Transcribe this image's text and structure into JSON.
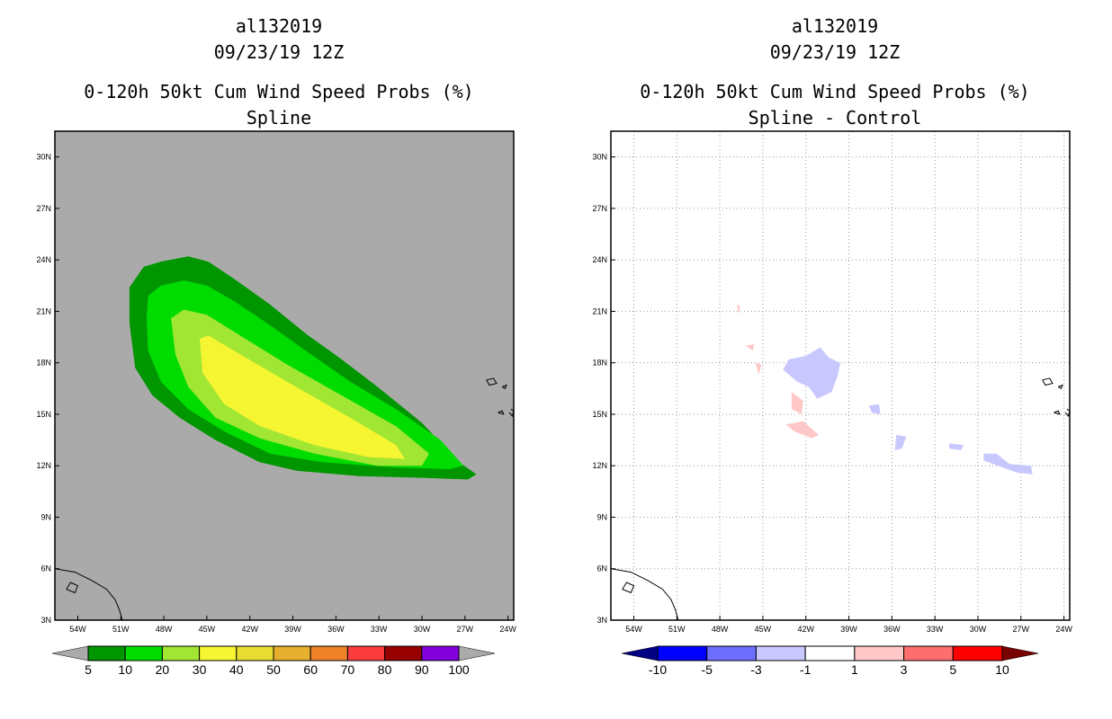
{
  "chart_data": [
    {
      "type": "heatmap",
      "id": "left",
      "title_lines": [
        "al132019",
        "09/23/19 12Z",
        "0-120h 50kt Cum Wind Speed Probs (%)",
        "Spline"
      ],
      "xlim": [
        -55.6,
        -23.6
      ],
      "ylim": [
        3,
        31.5
      ],
      "grid": false,
      "background": "#aaaaaa",
      "xticks": [
        "54W",
        "51W",
        "48W",
        "45W",
        "42W",
        "39W",
        "36W",
        "33W",
        "30W",
        "27W",
        "24W"
      ],
      "xtick_values": [
        -54,
        -51,
        -48,
        -45,
        -42,
        -39,
        -36,
        -33,
        -30,
        -27,
        -24
      ],
      "yticks": [
        "3N",
        "6N",
        "9N",
        "12N",
        "15N",
        "18N",
        "21N",
        "24N",
        "27N",
        "30N"
      ],
      "ytick_values": [
        3,
        6,
        9,
        12,
        15,
        18,
        21,
        24,
        27,
        30
      ],
      "colorbar": {
        "labels": [
          "5",
          "10",
          "20",
          "30",
          "40",
          "50",
          "60",
          "70",
          "80",
          "90",
          "100"
        ],
        "colors": [
          "#009600",
          "#00dc00",
          "#a0e632",
          "#f5f532",
          "#e6dc32",
          "#e6af2d",
          "#f08228",
          "#fa3c3c",
          "#960000",
          "#8200dc"
        ],
        "under": "#aaaaaa",
        "over": "#aaaaaa"
      },
      "contours": [
        {
          "level": 5,
          "color": "#009600",
          "polygon": [
            [
              -50.4,
              22.4
            ],
            [
              -49.4,
              23.6
            ],
            [
              -48.2,
              23.9
            ],
            [
              -46.3,
              24.2
            ],
            [
              -44.9,
              23.9
            ],
            [
              -43.1,
              22.9
            ],
            [
              -40.6,
              21.4
            ],
            [
              -38.1,
              19.7
            ],
            [
              -35.6,
              18.2
            ],
            [
              -33.1,
              16.6
            ],
            [
              -30.0,
              14.5
            ],
            [
              -27.4,
              12.2
            ],
            [
              -26.2,
              11.5
            ],
            [
              -26.8,
              11.2
            ],
            [
              -30.0,
              11.3
            ],
            [
              -34.4,
              11.4
            ],
            [
              -38.7,
              11.7
            ],
            [
              -41.3,
              12.2
            ],
            [
              -44.4,
              13.5
            ],
            [
              -46.9,
              14.8
            ],
            [
              -48.8,
              16.1
            ],
            [
              -50.0,
              17.7
            ],
            [
              -50.4,
              20.3
            ]
          ]
        },
        {
          "level": 10,
          "color": "#00dc00",
          "polygon": [
            [
              -49.1,
              21.9
            ],
            [
              -48.2,
              22.5
            ],
            [
              -46.6,
              22.8
            ],
            [
              -45.0,
              22.5
            ],
            [
              -43.1,
              21.6
            ],
            [
              -40.6,
              20.2
            ],
            [
              -38.1,
              18.7
            ],
            [
              -35.0,
              16.9
            ],
            [
              -31.8,
              15.3
            ],
            [
              -28.7,
              13.5
            ],
            [
              -27.1,
              12.0
            ],
            [
              -28.1,
              11.8
            ],
            [
              -31.8,
              11.9
            ],
            [
              -36.9,
              12.2
            ],
            [
              -40.6,
              12.7
            ],
            [
              -43.8,
              14.0
            ],
            [
              -46.3,
              15.3
            ],
            [
              -48.2,
              16.9
            ],
            [
              -49.1,
              18.7
            ],
            [
              -49.2,
              20.6
            ]
          ]
        },
        {
          "level": 20,
          "color": "#a0e632",
          "polygon": [
            [
              -47.5,
              20.6
            ],
            [
              -46.6,
              21.1
            ],
            [
              -45.0,
              20.8
            ],
            [
              -42.5,
              19.5
            ],
            [
              -39.4,
              17.9
            ],
            [
              -35.6,
              16.1
            ],
            [
              -31.8,
              14.3
            ],
            [
              -29.5,
              12.7
            ],
            [
              -30.0,
              12.0
            ],
            [
              -33.1,
              12.0
            ],
            [
              -37.5,
              12.7
            ],
            [
              -41.3,
              13.6
            ],
            [
              -44.4,
              14.8
            ],
            [
              -46.3,
              16.6
            ],
            [
              -47.2,
              18.5
            ]
          ]
        },
        {
          "level": 30,
          "color": "#f5f532",
          "polygon": [
            [
              -45.5,
              19.4
            ],
            [
              -44.9,
              19.6
            ],
            [
              -43.1,
              18.7
            ],
            [
              -39.4,
              16.9
            ],
            [
              -35.0,
              14.8
            ],
            [
              -31.8,
              13.2
            ],
            [
              -31.2,
              12.4
            ],
            [
              -33.7,
              12.5
            ],
            [
              -37.5,
              13.2
            ],
            [
              -41.3,
              14.3
            ],
            [
              -43.8,
              15.6
            ],
            [
              -45.3,
              17.4
            ]
          ]
        }
      ]
    },
    {
      "type": "heatmap",
      "id": "right",
      "title_lines": [
        "al132019",
        "09/23/19 12Z",
        "0-120h 50kt Cum Wind Speed Probs (%)",
        "Spline - Control"
      ],
      "xlim": [
        -55.6,
        -23.6
      ],
      "ylim": [
        3,
        31.5
      ],
      "grid": true,
      "background": "#ffffff",
      "xticks": [
        "54W",
        "51W",
        "48W",
        "45W",
        "42W",
        "39W",
        "36W",
        "33W",
        "30W",
        "27W",
        "24W"
      ],
      "xtick_values": [
        -54,
        -51,
        -48,
        -45,
        -42,
        -39,
        -36,
        -33,
        -30,
        -27,
        -24
      ],
      "yticks": [
        "3N",
        "6N",
        "9N",
        "12N",
        "15N",
        "18N",
        "21N",
        "24N",
        "27N",
        "30N"
      ],
      "ytick_values": [
        3,
        6,
        9,
        12,
        15,
        18,
        21,
        24,
        27,
        30
      ],
      "colorbar": {
        "labels": [
          "-10",
          "-5",
          "-3",
          "-1",
          "1",
          "3",
          "5",
          "10"
        ],
        "colors": [
          "#0000ff",
          "#6e6eff",
          "#c8c8ff",
          "#ffffff",
          "#ffc8c8",
          "#ff6e6e",
          "#ff0000"
        ],
        "under": "#000082",
        "over": "#780000"
      },
      "contours": [
        {
          "level": -3,
          "color": "#c8c8ff",
          "polygon": [
            [
              -43.2,
              18.2
            ],
            [
              -42.0,
              18.4
            ],
            [
              -41.0,
              18.9
            ],
            [
              -40.4,
              18.3
            ],
            [
              -39.6,
              18.0
            ],
            [
              -39.8,
              17.2
            ],
            [
              -40.2,
              16.3
            ],
            [
              -41.2,
              15.9
            ],
            [
              -41.8,
              16.6
            ],
            [
              -42.6,
              16.9
            ],
            [
              -43.6,
              17.6
            ]
          ]
        },
        {
          "level": -3,
          "color": "#c8c8ff",
          "polygon": [
            [
              -37.6,
              15.5
            ],
            [
              -36.9,
              15.6
            ],
            [
              -36.8,
              15.0
            ],
            [
              -37.4,
              15.1
            ]
          ]
        },
        {
          "level": -3,
          "color": "#c8c8ff",
          "polygon": [
            [
              -35.7,
              13.8
            ],
            [
              -35.0,
              13.7
            ],
            [
              -35.3,
              13.0
            ],
            [
              -35.8,
              12.9
            ]
          ]
        },
        {
          "level": -3,
          "color": "#c8c8ff",
          "polygon": [
            [
              -32.0,
              13.3
            ],
            [
              -31.0,
              13.2
            ],
            [
              -31.2,
              12.9
            ],
            [
              -32.0,
              13.0
            ]
          ]
        },
        {
          "level": -3,
          "color": "#c8c8ff",
          "polygon": [
            [
              -29.6,
              12.7
            ],
            [
              -28.7,
              12.7
            ],
            [
              -27.8,
              12.1
            ],
            [
              -26.3,
              12.0
            ],
            [
              -26.2,
              11.5
            ],
            [
              -27.3,
              11.6
            ],
            [
              -28.6,
              12.0
            ],
            [
              -29.6,
              12.3
            ]
          ]
        },
        {
          "level": 3,
          "color": "#ffc8c8",
          "polygon": [
            [
              -43.0,
              16.3
            ],
            [
              -42.2,
              15.8
            ],
            [
              -42.3,
              15.0
            ],
            [
              -43.0,
              15.3
            ]
          ]
        },
        {
          "level": 3,
          "color": "#ffc8c8",
          "polygon": [
            [
              -43.4,
              14.4
            ],
            [
              -42.2,
              14.6
            ],
            [
              -41.1,
              13.8
            ],
            [
              -41.6,
              13.6
            ],
            [
              -42.8,
              14.0
            ]
          ]
        },
        {
          "level": 3,
          "color": "#ffc8c8",
          "polygon": [
            [
              -46.2,
              19.0
            ],
            [
              -45.6,
              19.1
            ],
            [
              -45.7,
              18.7
            ]
          ]
        },
        {
          "level": 3,
          "color": "#ffc8c8",
          "polygon": [
            [
              -45.5,
              18.0
            ],
            [
              -45.1,
              17.9
            ],
            [
              -45.3,
              17.3
            ]
          ]
        },
        {
          "level": 3,
          "color": "#ffc8c8",
          "polygon": [
            [
              -46.8,
              21.4
            ],
            [
              -46.6,
              21.3
            ],
            [
              -46.7,
              20.8
            ]
          ]
        }
      ]
    }
  ],
  "coastlines": [
    [
      [
        -55.6,
        6.0
      ],
      [
        -54.2,
        5.8
      ],
      [
        -53.0,
        5.3
      ],
      [
        -52.0,
        4.8
      ],
      [
        -51.4,
        4.2
      ],
      [
        -51.1,
        3.6
      ],
      [
        -50.9,
        3.0
      ]
    ],
    [
      [
        -54.8,
        4.8
      ],
      [
        -54.5,
        5.2
      ],
      [
        -54.0,
        5.0
      ],
      [
        -54.2,
        4.6
      ],
      [
        -54.8,
        4.8
      ]
    ],
    [
      [
        -25.5,
        17.0
      ],
      [
        -25.0,
        17.1
      ],
      [
        -24.8,
        16.8
      ],
      [
        -25.3,
        16.7
      ],
      [
        -25.5,
        17.0
      ]
    ],
    [
      [
        -24.4,
        16.6
      ],
      [
        -24.1,
        16.7
      ],
      [
        -24.2,
        16.5
      ],
      [
        -24.4,
        16.6
      ]
    ],
    [
      [
        -24.7,
        15.1
      ],
      [
        -24.4,
        15.2
      ],
      [
        -24.3,
        15.0
      ],
      [
        -24.7,
        15.1
      ]
    ],
    [
      [
        -23.8,
        15.3
      ],
      [
        -23.6,
        15.2
      ],
      [
        -23.7,
        14.9
      ],
      [
        -23.9,
        15.1
      ]
    ]
  ]
}
